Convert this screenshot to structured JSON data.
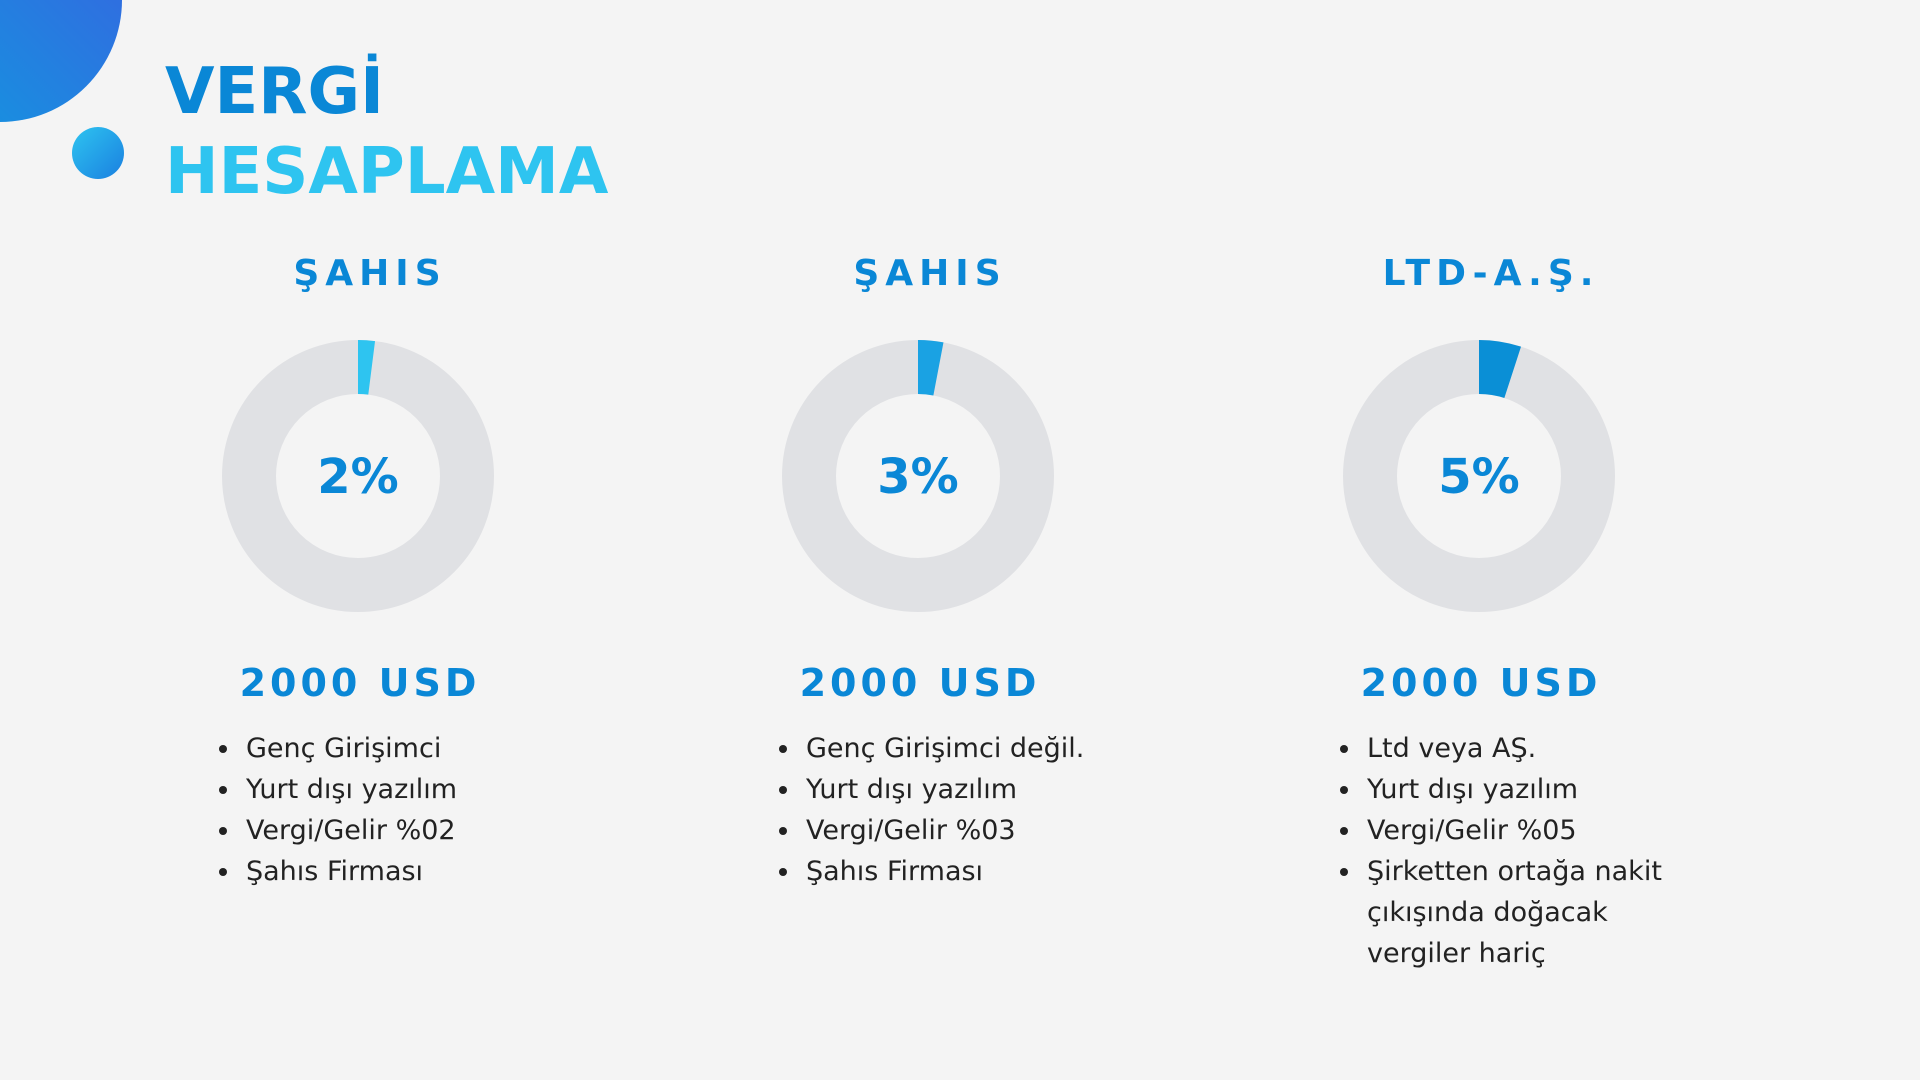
{
  "header": {
    "line1": "VERGİ",
    "line2": "HESAPLAMA"
  },
  "chart_data": [
    {
      "type": "donut",
      "title": "ŞAHIS",
      "values": [
        2
      ],
      "value_labels": [
        "2%"
      ],
      "color": "#2ec4f0",
      "amount": "2000 USD",
      "notes": [
        "Genç Girişimci",
        "Yurt dışı yazılım",
        "Vergi/Gelir %02",
        "Şahıs Firması"
      ]
    },
    {
      "type": "donut",
      "title": "ŞAHIS",
      "values": [
        3
      ],
      "value_labels": [
        "3%"
      ],
      "color": "#1aa2e3",
      "amount": "2000 USD",
      "notes": [
        "Genç Girişimci değil.",
        "Yurt dışı yazılım",
        "Vergi/Gelir %03",
        "Şahıs Firması"
      ]
    },
    {
      "type": "donut",
      "title": "LTD-A.Ş.",
      "values": [
        5
      ],
      "value_labels": [
        "5%"
      ],
      "color": "#0a8fd6",
      "amount": "2000 USD",
      "notes": [
        "Ltd veya AŞ.",
        "Yurt dışı yazılım",
        "Vergi/Gelir %05",
        "Şirketten ortağa nakit çıkışında doğacak vergiler hariç"
      ]
    }
  ]
}
